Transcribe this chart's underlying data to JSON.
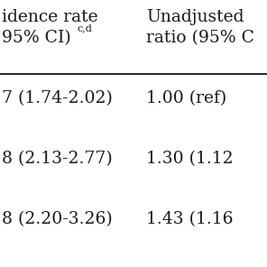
{
  "col1_header_line1": "idence rate",
  "col1_header_line2": "95% CI)",
  "col1_header_superscript": "c,d",
  "col2_header_line1": "Unadjusted",
  "col2_header_line2": "ratio (95% C",
  "rows": [
    {
      "col1": "7 (1.74-2.02)",
      "col2": "1.00 (ref)"
    },
    {
      "col1": "8 (2.13-2.77)",
      "col2": "1.30 (1.12"
    },
    {
      "col1": "8 (2.20-3.26)",
      "col2": "1.43 (1.16"
    }
  ],
  "background_color": "#ffffff",
  "text_color": "#1a1a1a",
  "font_size": 13.5,
  "line_color": "#000000",
  "figsize": [
    2.96,
    2.96
  ],
  "dpi": 100
}
